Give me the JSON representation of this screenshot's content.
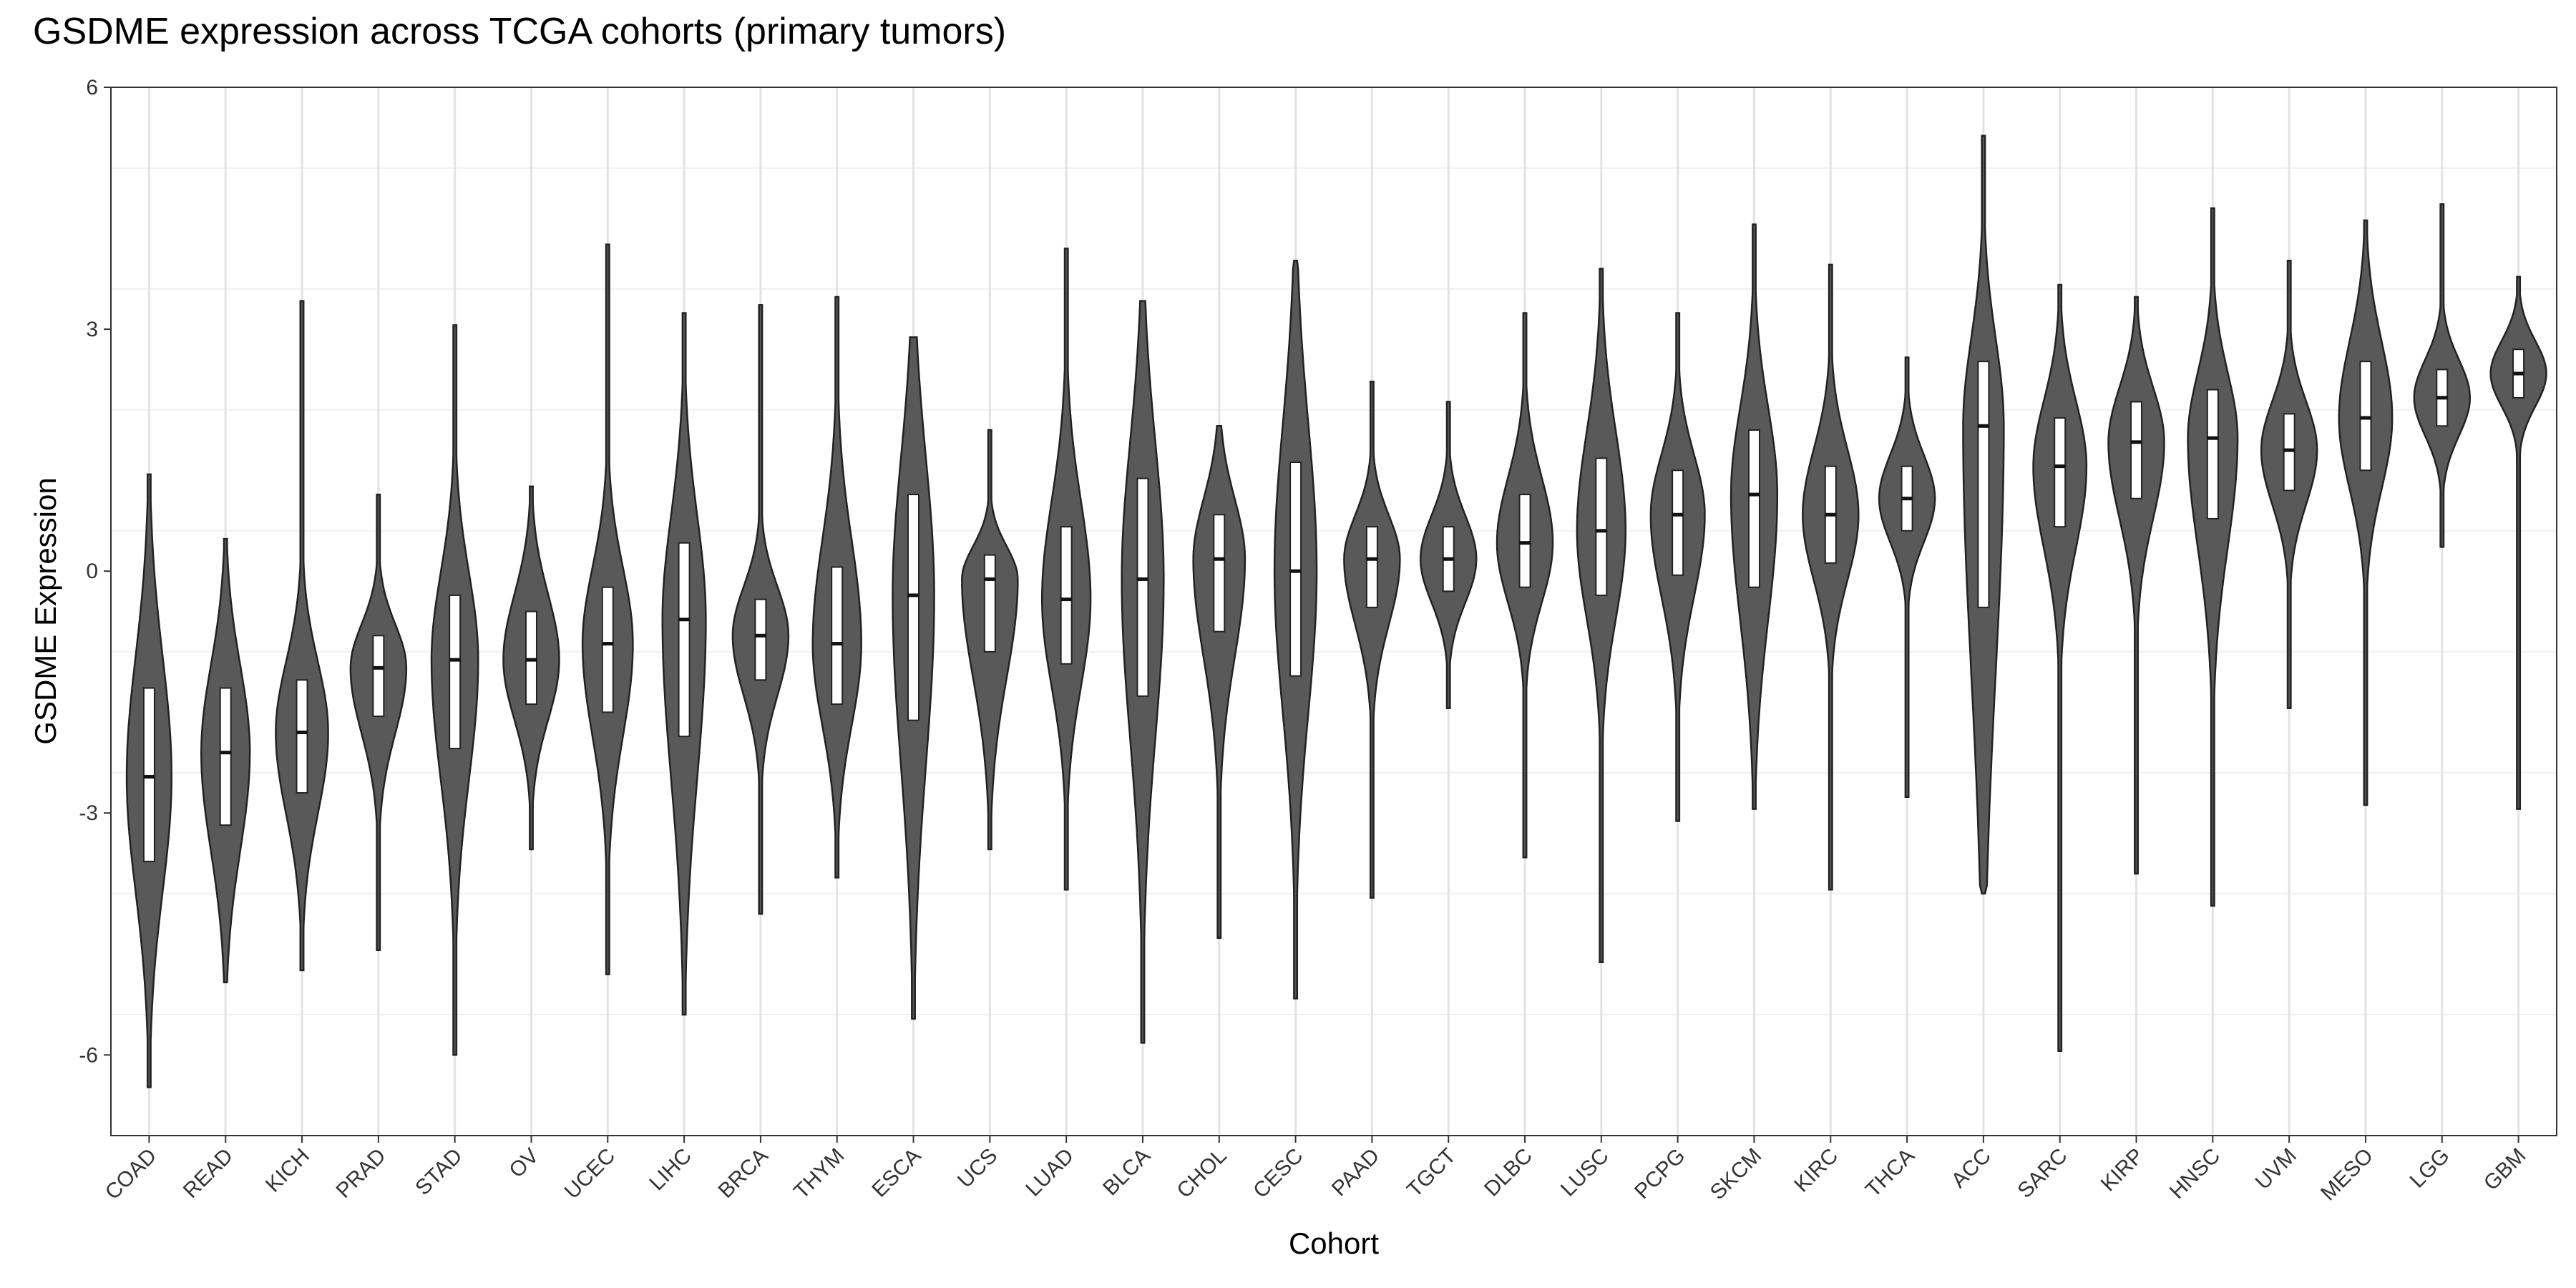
{
  "chart_data": {
    "type": "violin",
    "title": "GSDME expression across TCGA cohorts (primary tumors)",
    "xlabel": "Cohort",
    "ylabel": "GSDME Expression",
    "ylim": [
      -7,
      6
    ],
    "yticks": [
      -6,
      -3,
      0,
      3,
      6
    ],
    "ytick_labels": [
      "-6",
      "-3",
      "0",
      "3",
      "6"
    ],
    "grid": true,
    "violin_fill": "#595959",
    "violin_stroke": "#222222",
    "box_fill": "#ffffff",
    "categories": [
      "COAD",
      "READ",
      "KICH",
      "PRAD",
      "STAD",
      "OV",
      "UCEC",
      "LIHC",
      "BRCA",
      "THYM",
      "ESCA",
      "UCS",
      "LUAD",
      "BLCA",
      "CHOL",
      "CESC",
      "PAAD",
      "TGCT",
      "DLBC",
      "LUSC",
      "PCPG",
      "SKCM",
      "KIRC",
      "THCA",
      "ACC",
      "SARC",
      "KIRP",
      "HNSC",
      "UVM",
      "MESO",
      "LGG",
      "GBM"
    ],
    "series": [
      {
        "cohort": "COAD",
        "min": -6.4,
        "q1": -3.6,
        "median": -2.55,
        "q3": -1.45,
        "max": 1.2
      },
      {
        "cohort": "READ",
        "min": -5.1,
        "q1": -3.15,
        "median": -2.25,
        "q3": -1.45,
        "max": 0.4
      },
      {
        "cohort": "KICH",
        "min": -4.95,
        "q1": -2.75,
        "median": -2.0,
        "q3": -1.35,
        "max": 3.35
      },
      {
        "cohort": "PRAD",
        "min": -4.7,
        "q1": -1.8,
        "median": -1.2,
        "q3": -0.8,
        "max": 0.95
      },
      {
        "cohort": "STAD",
        "min": -6.0,
        "q1": -2.2,
        "median": -1.1,
        "q3": -0.3,
        "max": 3.05
      },
      {
        "cohort": "OV",
        "min": -3.45,
        "q1": -1.65,
        "median": -1.1,
        "q3": -0.5,
        "max": 1.05
      },
      {
        "cohort": "UCEC",
        "min": -5.0,
        "q1": -1.75,
        "median": -0.9,
        "q3": -0.2,
        "max": 4.05
      },
      {
        "cohort": "LIHC",
        "min": -5.5,
        "q1": -2.05,
        "median": -0.6,
        "q3": 0.35,
        "max": 3.2
      },
      {
        "cohort": "BRCA",
        "min": -4.25,
        "q1": -1.35,
        "median": -0.8,
        "q3": -0.35,
        "max": 3.3
      },
      {
        "cohort": "THYM",
        "min": -3.8,
        "q1": -1.65,
        "median": -0.9,
        "q3": 0.05,
        "max": 3.4
      },
      {
        "cohort": "ESCA",
        "min": -5.55,
        "q1": -1.85,
        "median": -0.3,
        "q3": 0.95,
        "max": 2.9
      },
      {
        "cohort": "UCS",
        "min": -3.45,
        "q1": -1.0,
        "median": -0.1,
        "q3": 0.2,
        "max": 1.75
      },
      {
        "cohort": "LUAD",
        "min": -3.95,
        "q1": -1.15,
        "median": -0.35,
        "q3": 0.55,
        "max": 4.0
      },
      {
        "cohort": "BLCA",
        "min": -5.85,
        "q1": -1.55,
        "median": -0.1,
        "q3": 1.15,
        "max": 3.35
      },
      {
        "cohort": "CHOL",
        "min": -4.55,
        "q1": -0.75,
        "median": 0.15,
        "q3": 0.7,
        "max": 1.8
      },
      {
        "cohort": "CESC",
        "min": -5.3,
        "q1": -1.3,
        "median": 0.0,
        "q3": 1.35,
        "max": 3.85
      },
      {
        "cohort": "PAAD",
        "min": -4.05,
        "q1": -0.45,
        "median": 0.15,
        "q3": 0.55,
        "max": 2.35
      },
      {
        "cohort": "TGCT",
        "min": -1.7,
        "q1": -0.25,
        "median": 0.15,
        "q3": 0.55,
        "max": 2.1
      },
      {
        "cohort": "DLBC",
        "min": -3.55,
        "q1": -0.2,
        "median": 0.35,
        "q3": 0.95,
        "max": 3.2
      },
      {
        "cohort": "LUSC",
        "min": -4.85,
        "q1": -0.3,
        "median": 0.5,
        "q3": 1.4,
        "max": 3.75
      },
      {
        "cohort": "PCPG",
        "min": -3.1,
        "q1": -0.05,
        "median": 0.7,
        "q3": 1.25,
        "max": 3.2
      },
      {
        "cohort": "SKCM",
        "min": -2.95,
        "q1": -0.2,
        "median": 0.95,
        "q3": 1.75,
        "max": 4.3
      },
      {
        "cohort": "KIRC",
        "min": -3.95,
        "q1": 0.1,
        "median": 0.7,
        "q3": 1.3,
        "max": 3.8
      },
      {
        "cohort": "THCA",
        "min": -2.8,
        "q1": 0.5,
        "median": 0.9,
        "q3": 1.3,
        "max": 2.65
      },
      {
        "cohort": "ACC",
        "min": -4.0,
        "q1": -0.45,
        "median": 1.8,
        "q3": 2.6,
        "max": 5.4
      },
      {
        "cohort": "SARC",
        "min": -5.95,
        "q1": 0.55,
        "median": 1.3,
        "q3": 1.9,
        "max": 3.55
      },
      {
        "cohort": "KIRP",
        "min": -3.75,
        "q1": 0.9,
        "median": 1.6,
        "q3": 2.1,
        "max": 3.4
      },
      {
        "cohort": "HNSC",
        "min": -4.15,
        "q1": 0.65,
        "median": 1.65,
        "q3": 2.25,
        "max": 4.5
      },
      {
        "cohort": "UVM",
        "min": -1.7,
        "q1": 1.0,
        "median": 1.5,
        "q3": 1.95,
        "max": 3.85
      },
      {
        "cohort": "MESO",
        "min": -2.9,
        "q1": 1.25,
        "median": 1.9,
        "q3": 2.6,
        "max": 4.35
      },
      {
        "cohort": "LGG",
        "min": 0.3,
        "q1": 1.8,
        "median": 2.15,
        "q3": 2.5,
        "max": 4.55
      },
      {
        "cohort": "GBM",
        "min": -2.95,
        "q1": 2.15,
        "median": 2.45,
        "q3": 2.75,
        "max": 3.65
      }
    ]
  }
}
